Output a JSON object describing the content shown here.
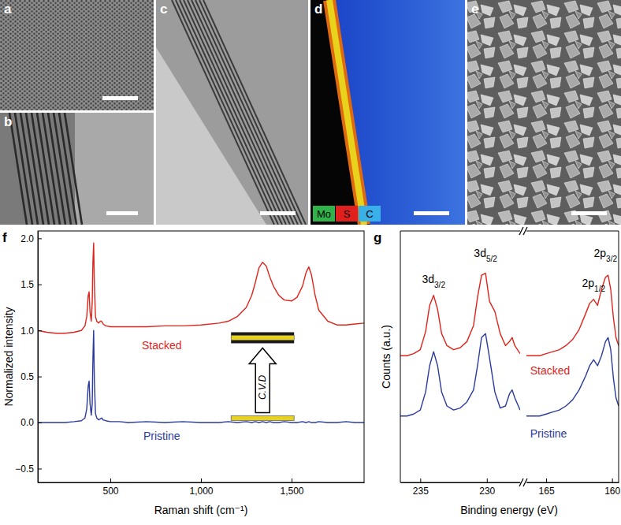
{
  "panels": [
    {
      "label": "a"
    },
    {
      "label": "b"
    },
    {
      "label": "c"
    },
    {
      "label": "d",
      "legend": [
        {
          "text": "Mo",
          "color": "#2fb34a"
        },
        {
          "text": "S",
          "color": "#e0201c"
        },
        {
          "text": "C",
          "color": "#3ab0e8"
        }
      ]
    },
    {
      "label": "e"
    }
  ],
  "chart_data": [
    {
      "type": "line",
      "panel": "f",
      "x_label": "Raman shift (cm⁻¹)",
      "y_label": "Normalized intensity",
      "xlim": [
        100,
        1900
      ],
      "xticks": [
        500,
        {
          "value": 1000,
          "label": "1,000"
        },
        {
          "value": 1500,
          "label": "1,500"
        }
      ],
      "ylim": [
        -0.65,
        2.08
      ],
      "yticks": [
        {
          "value": -0.5,
          "label": "−0.5"
        },
        {
          "value": 0,
          "label": "0.0"
        },
        0.5,
        {
          "value": 1,
          "label": "1.0"
        },
        1.5,
        {
          "value": 2,
          "label": "2.0"
        }
      ],
      "x": [
        100,
        150,
        200,
        250,
        300,
        340,
        360,
        370,
        378,
        383,
        388,
        395,
        400,
        404,
        408,
        412,
        418,
        425,
        435,
        445,
        452,
        460,
        475,
        500,
        550,
        600,
        700,
        800,
        900,
        1000,
        1100,
        1150,
        1200,
        1250,
        1280,
        1300,
        1320,
        1340,
        1360,
        1380,
        1400,
        1430,
        1460,
        1500,
        1530,
        1560,
        1580,
        1595,
        1610,
        1630,
        1650,
        1700,
        1750,
        1800,
        1850,
        1900
      ],
      "series": [
        {
          "name": "Stacked",
          "color": "#e0241b",
          "values": [
            1.0,
            0.98,
            0.97,
            0.97,
            0.98,
            1.0,
            1.05,
            1.15,
            1.38,
            1.42,
            1.2,
            1.1,
            1.3,
            1.75,
            1.95,
            1.5,
            1.15,
            1.1,
            1.08,
            1.1,
            1.1,
            1.07,
            1.05,
            1.04,
            1.04,
            1.04,
            1.04,
            1.05,
            1.05,
            1.06,
            1.08,
            1.1,
            1.15,
            1.25,
            1.38,
            1.52,
            1.68,
            1.74,
            1.7,
            1.58,
            1.48,
            1.38,
            1.33,
            1.32,
            1.36,
            1.48,
            1.63,
            1.69,
            1.6,
            1.38,
            1.22,
            1.1,
            1.06,
            1.06,
            1.07,
            1.08
          ]
        },
        {
          "name": "Pristine",
          "color": "#2b3a9e",
          "values": [
            0.0,
            0.0,
            0.0,
            0.0,
            0.01,
            0.02,
            0.05,
            0.15,
            0.4,
            0.45,
            0.2,
            0.08,
            0.2,
            0.7,
            1.0,
            0.45,
            0.1,
            0.05,
            0.03,
            0.04,
            0.05,
            0.03,
            0.02,
            0.01,
            0.01,
            0.0,
            0.01,
            0.0,
            0.01,
            0.0,
            0.0,
            0.01,
            0.0,
            0.01,
            0.0,
            0.01,
            0.0,
            0.01,
            0.0,
            0.01,
            0.0,
            0.0,
            0.01,
            0.0,
            0.0,
            0.01,
            0.0,
            0.01,
            0.0,
            0.0,
            0.01,
            0.0,
            0.0,
            0.01,
            0.0,
            0.0
          ]
        }
      ],
      "annotations": [
        {
          "text": "C.V.D",
          "x": 1340,
          "y": 0.45
        }
      ]
    },
    {
      "type": "line",
      "panel": "g",
      "x_label": "Binding energy (eV)",
      "y_label": "Counts (a.u.)",
      "tick_labels": "x",
      "xlim": [
        236.5,
        227.5
      ],
      "xticks": [
        235,
        230
      ],
      "ylim": [
        0,
        1.25
      ],
      "x": [
        236.5,
        236,
        235.5,
        235,
        234.6,
        234.3,
        234.0,
        233.7,
        233.4,
        233,
        232.5,
        232,
        231.5,
        231,
        230.7,
        230.4,
        230.1,
        229.8,
        229.4,
        229.0,
        228.6,
        228.3,
        228.1,
        227.9,
        227.5
      ],
      "series": [
        {
          "color": "#e0241b",
          "values": [
            0.63,
            0.63,
            0.64,
            0.66,
            0.75,
            0.88,
            0.93,
            0.86,
            0.74,
            0.68,
            0.66,
            0.67,
            0.7,
            0.78,
            0.92,
            1.03,
            1.04,
            0.9,
            0.85,
            0.74,
            0.68,
            0.7,
            0.72,
            0.68,
            0.64
          ]
        },
        {
          "color": "#2b3a9e",
          "values": [
            0.33,
            0.33,
            0.34,
            0.36,
            0.45,
            0.58,
            0.65,
            0.58,
            0.45,
            0.38,
            0.36,
            0.37,
            0.4,
            0.46,
            0.58,
            0.72,
            0.74,
            0.62,
            0.45,
            0.37,
            0.38,
            0.44,
            0.46,
            0.42,
            0.36
          ]
        }
      ],
      "annotations": [
        {
          "text": "3d",
          "sub": "3/2",
          "x": 234.0,
          "y": 0.99
        },
        {
          "text": "3d",
          "sub": "5/2",
          "x": 230.1,
          "y": 1.12
        }
      ]
    },
    {
      "type": "line",
      "tick_labels": "x",
      "xlim": [
        166.5,
        159.5
      ],
      "xticks": [
        165,
        160
      ],
      "ylim": [
        0,
        1.25
      ],
      "x": [
        166.5,
        166,
        165.5,
        165,
        164.5,
        164,
        163.5,
        163,
        162.5,
        162,
        161.7,
        161.4,
        161.1,
        160.8,
        160.5,
        160.3,
        160.1,
        159.9,
        159.7,
        159.5
      ],
      "series": [
        {
          "name": "Stacked",
          "color": "#e0241b",
          "values": [
            0.63,
            0.63,
            0.63,
            0.64,
            0.65,
            0.66,
            0.68,
            0.71,
            0.76,
            0.84,
            0.89,
            0.91,
            0.88,
            0.96,
            1.02,
            1.03,
            0.96,
            0.82,
            0.72,
            0.68
          ]
        },
        {
          "name": "Pristine",
          "color": "#2b3a9e",
          "values": [
            0.33,
            0.33,
            0.33,
            0.34,
            0.35,
            0.36,
            0.38,
            0.41,
            0.46,
            0.53,
            0.58,
            0.61,
            0.58,
            0.63,
            0.7,
            0.72,
            0.66,
            0.52,
            0.42,
            0.38
          ]
        }
      ],
      "annotations": [
        {
          "text": "2p",
          "sub": "1/2",
          "x": 161.4,
          "y": 0.97
        },
        {
          "text": "2p",
          "sub": "3/2",
          "x": 160.5,
          "y": 1.12
        }
      ]
    }
  ]
}
